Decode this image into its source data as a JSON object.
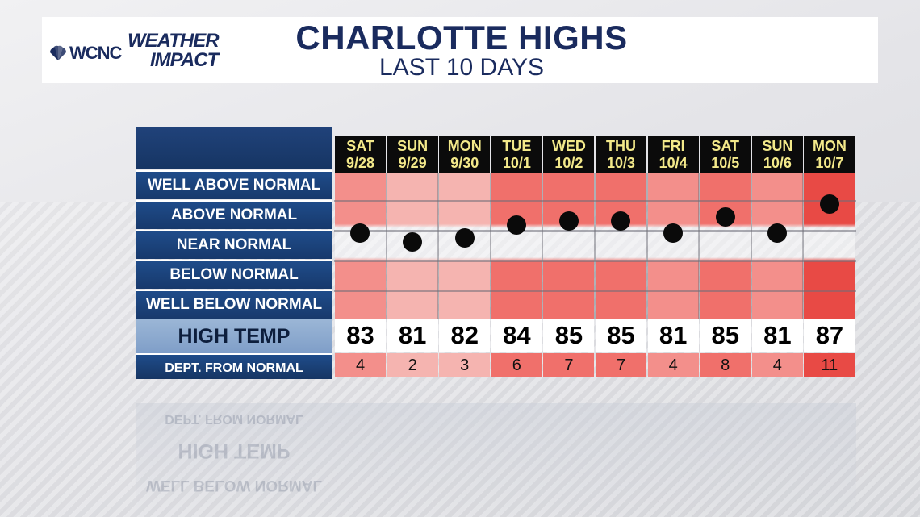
{
  "header": {
    "logo_call": "WCNC",
    "logo_line1": "WEATHER",
    "logo_line2": "IMPACT",
    "title": "CHARLOTTE HIGHS",
    "subtitle": "LAST 10 DAYS"
  },
  "row_labels": {
    "well_above": "WELL ABOVE NORMAL",
    "above": "ABOVE NORMAL",
    "near": "NEAR NORMAL",
    "below": "BELOW NORMAL",
    "well_below": "WELL BELOW NORMAL",
    "high_temp": "HIGH TEMP",
    "dept": "DEPT. FROM NORMAL"
  },
  "days": [
    {
      "day": "SAT",
      "date": "9/28"
    },
    {
      "day": "SUN",
      "date": "9/29"
    },
    {
      "day": "MON",
      "date": "9/30"
    },
    {
      "day": "TUE",
      "date": "10/1"
    },
    {
      "day": "WED",
      "date": "10/2"
    },
    {
      "day": "THU",
      "date": "10/3"
    },
    {
      "day": "FRI",
      "date": "10/4"
    },
    {
      "day": "SAT",
      "date": "10/5"
    },
    {
      "day": "SUN",
      "date": "10/6"
    },
    {
      "day": "MON",
      "date": "10/7"
    }
  ],
  "chart_data": {
    "type": "scatter",
    "title": "CHARLOTTE HIGHS",
    "subtitle": "LAST 10 DAYS",
    "categories": [
      "SAT 9/28",
      "SUN 9/29",
      "MON 9/30",
      "TUE 10/1",
      "WED 10/2",
      "THU 10/3",
      "FRI 10/4",
      "SAT 10/5",
      "SUN 10/6",
      "MON 10/7"
    ],
    "high_temps": [
      83,
      81,
      82,
      84,
      85,
      85,
      81,
      85,
      81,
      87
    ],
    "dept_from_normal": [
      4,
      2,
      3,
      6,
      7,
      7,
      4,
      8,
      4,
      11
    ],
    "bands": [
      "WELL ABOVE NORMAL",
      "ABOVE NORMAL",
      "NEAR NORMAL",
      "BELOW NORMAL",
      "WELL BELOW NORMAL"
    ],
    "colors": {
      "low": "#f5b4b0",
      "mid": "#f38f8b",
      "high": "#f0706b",
      "max": "#e84a45",
      "dot": "#0a0a0a",
      "header_text": "#f3e98a",
      "navy": "#1a2b5e"
    }
  }
}
